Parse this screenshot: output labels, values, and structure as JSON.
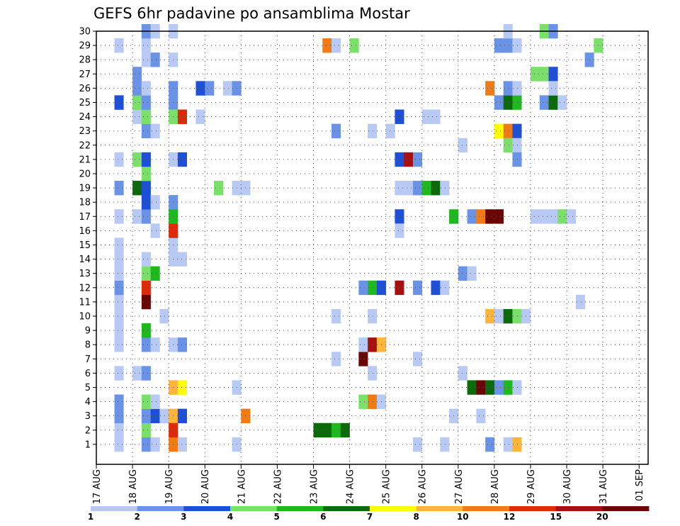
{
  "chart_data": {
    "type": "heatmap",
    "title": "GEFS 6hr padavine po ansamblima Mostar",
    "x_tick_labels": [
      "17 AUG",
      "18 AUG",
      "19 AUG",
      "20 AUG",
      "21 AUG",
      "22 AUG",
      "23 AUG",
      "24 AUG",
      "25 AUG",
      "26 AUG",
      "27 AUG",
      "28 AUG",
      "29 AUG",
      "30 AUG",
      "31 AUG",
      "01 SEP"
    ],
    "x_range": [
      0,
      61
    ],
    "y_range": [
      0,
      30
    ],
    "y_tick_labels": [
      "1",
      "2",
      "3",
      "4",
      "5",
      "6",
      "7",
      "8",
      "9",
      "10",
      "11",
      "12",
      "13",
      "14",
      "15",
      "16",
      "17",
      "18",
      "19",
      "20",
      "21",
      "22",
      "23",
      "24",
      "25",
      "26",
      "27",
      "28",
      "29",
      "30"
    ],
    "grid": true,
    "colorbar": {
      "labels": [
        "1",
        "2",
        "3",
        "4",
        "5",
        "6",
        "7",
        "8",
        "10",
        "12",
        "15",
        "20"
      ],
      "colors": [
        "#b8c9f4",
        "#6a93e8",
        "#1e4fd8",
        "#7ae06a",
        "#1fb81f",
        "#0b6b0b",
        "#ffff00",
        "#ffb43c",
        "#f07a14",
        "#de2a0a",
        "#a80f0f",
        "#6a0606"
      ]
    },
    "cells": [
      [
        2,
        1,
        "#b8c9f4"
      ],
      [
        2,
        2,
        "#b8c9f4"
      ],
      [
        2,
        3,
        "#6a93e8"
      ],
      [
        2,
        4,
        "#6a93e8"
      ],
      [
        2,
        6,
        "#b8c9f4"
      ],
      [
        2,
        8,
        "#b8c9f4"
      ],
      [
        2,
        9,
        "#b8c9f4"
      ],
      [
        2,
        10,
        "#b8c9f4"
      ],
      [
        2,
        11,
        "#b8c9f4"
      ],
      [
        2,
        12,
        "#6a93e8"
      ],
      [
        2,
        13,
        "#b8c9f4"
      ],
      [
        2,
        14,
        "#b8c9f4"
      ],
      [
        2,
        15,
        "#b8c9f4"
      ],
      [
        2,
        17,
        "#b8c9f4"
      ],
      [
        2,
        19,
        "#6a93e8"
      ],
      [
        2,
        21,
        "#b8c9f4"
      ],
      [
        2,
        25,
        "#1e4fd8"
      ],
      [
        2,
        29,
        "#b8c9f4"
      ],
      [
        4,
        6,
        "#b8c9f4"
      ],
      [
        4,
        17,
        "#b8c9f4"
      ],
      [
        4,
        24,
        "#b8c9f4"
      ],
      [
        4,
        25,
        "#7ae06a"
      ],
      [
        4,
        26,
        "#6a93e8"
      ],
      [
        4,
        27,
        "#6a93e8"
      ],
      [
        4,
        19,
        "#0b6b0b"
      ],
      [
        4,
        21,
        "#7ae06a"
      ],
      [
        5,
        1,
        "#6a93e8"
      ],
      [
        5,
        2,
        "#7ae06a"
      ],
      [
        5,
        3,
        "#6a93e8"
      ],
      [
        5,
        4,
        "#7ae06a"
      ],
      [
        5,
        6,
        "#6a93e8"
      ],
      [
        5,
        8,
        "#6a93e8"
      ],
      [
        5,
        9,
        "#1fb81f"
      ],
      [
        5,
        11,
        "#6a0606"
      ],
      [
        5,
        12,
        "#de2a0a"
      ],
      [
        5,
        13,
        "#7ae06a"
      ],
      [
        5,
        14,
        "#b8c9f4"
      ],
      [
        5,
        17,
        "#6a93e8"
      ],
      [
        5,
        18,
        "#1e4fd8"
      ],
      [
        5,
        19,
        "#1e4fd8"
      ],
      [
        5,
        20,
        "#7ae06a"
      ],
      [
        5,
        21,
        "#1e4fd8"
      ],
      [
        5,
        23,
        "#6a93e8"
      ],
      [
        5,
        24,
        "#7ae06a"
      ],
      [
        5,
        25,
        "#6a93e8"
      ],
      [
        5,
        26,
        "#b8c9f4"
      ],
      [
        5,
        28,
        "#b8c9f4"
      ],
      [
        5,
        29,
        "#b8c9f4"
      ],
      [
        5,
        30,
        "#6a93e8"
      ],
      [
        6,
        1,
        "#b8c9f4"
      ],
      [
        6,
        3,
        "#1e4fd8"
      ],
      [
        6,
        4,
        "#b8c9f4"
      ],
      [
        6,
        8,
        "#b8c9f4"
      ],
      [
        6,
        13,
        "#1fb81f"
      ],
      [
        6,
        16,
        "#b8c9f4"
      ],
      [
        6,
        18,
        "#b8c9f4"
      ],
      [
        6,
        23,
        "#b8c9f4"
      ],
      [
        6,
        28,
        "#6a93e8"
      ],
      [
        6,
        30,
        "#b8c9f4"
      ],
      [
        7,
        3,
        "#b8c9f4"
      ],
      [
        7,
        10,
        "#b8c9f4"
      ],
      [
        8,
        14,
        "#b8c9f4"
      ],
      [
        8,
        15,
        "#b8c9f4"
      ],
      [
        8,
        8,
        "#b8c9f4"
      ],
      [
        8,
        21,
        "#b8c9f4"
      ],
      [
        8,
        28,
        "#b8c9f4"
      ],
      [
        8,
        30,
        "#b8c9f4"
      ],
      [
        8,
        25,
        "#6a93e8"
      ],
      [
        8,
        26,
        "#6a93e8"
      ],
      [
        8,
        18,
        "#6a93e8"
      ],
      [
        8,
        3,
        "#ffb43c"
      ],
      [
        8,
        5,
        "#ffb43c"
      ],
      [
        8,
        1,
        "#f07a14"
      ],
      [
        8,
        2,
        "#de2a0a"
      ],
      [
        8,
        16,
        "#de2a0a"
      ],
      [
        8,
        17,
        "#1fb81f"
      ],
      [
        8,
        24,
        "#7ae06a"
      ],
      [
        9,
        14,
        "#b8c9f4"
      ],
      [
        9,
        1,
        "#b8c9f4"
      ],
      [
        9,
        21,
        "#1e4fd8"
      ],
      [
        9,
        24,
        "#de2a0a"
      ],
      [
        9,
        8,
        "#6a93e8"
      ],
      [
        9,
        3,
        "#1e4fd8"
      ],
      [
        9,
        5,
        "#ffff00"
      ],
      [
        11,
        26,
        "#1e4fd8"
      ],
      [
        11,
        24,
        "#b8c9f4"
      ],
      [
        12,
        26,
        "#6a93e8"
      ],
      [
        13,
        19,
        "#7ae06a"
      ],
      [
        14,
        26,
        "#b8c9f4"
      ],
      [
        15,
        5,
        "#b8c9f4"
      ],
      [
        15,
        1,
        "#b8c9f4"
      ],
      [
        15,
        19,
        "#b8c9f4"
      ],
      [
        15,
        26,
        "#6a93e8"
      ],
      [
        16,
        19,
        "#b8c9f4"
      ],
      [
        16,
        3,
        "#f07a14"
      ],
      [
        24,
        2,
        "#0b6b0b"
      ],
      [
        25,
        2,
        "#0b6b0b"
      ],
      [
        25,
        29,
        "#f07a14"
      ],
      [
        26,
        29,
        "#b8c9f4"
      ],
      [
        26,
        23,
        "#6a93e8"
      ],
      [
        26,
        2,
        "#1fb81f"
      ],
      [
        26,
        7,
        "#b8c9f4"
      ],
      [
        26,
        10,
        "#b8c9f4"
      ],
      [
        27,
        2,
        "#0b6b0b"
      ],
      [
        28,
        29,
        "#7ae06a"
      ],
      [
        29,
        7,
        "#6a0606"
      ],
      [
        29,
        8,
        "#b8c9f4"
      ],
      [
        29,
        12,
        "#6a93e8"
      ],
      [
        29,
        4,
        "#7ae06a"
      ],
      [
        30,
        4,
        "#f07a14"
      ],
      [
        30,
        8,
        "#a80f0f"
      ],
      [
        30,
        12,
        "#1fb81f"
      ],
      [
        30,
        6,
        "#b8c9f4"
      ],
      [
        30,
        10,
        "#b8c9f4"
      ],
      [
        30,
        23,
        "#b8c9f4"
      ],
      [
        31,
        8,
        "#ffb43c"
      ],
      [
        31,
        4,
        "#b8c9f4"
      ],
      [
        31,
        12,
        "#1e4fd8"
      ],
      [
        32,
        23,
        "#b8c9f4"
      ],
      [
        33,
        21,
        "#1e4fd8"
      ],
      [
        33,
        24,
        "#1e4fd8"
      ],
      [
        33,
        12,
        "#a80f0f"
      ],
      [
        33,
        17,
        "#1e4fd8"
      ],
      [
        33,
        16,
        "#b8c9f4"
      ],
      [
        33,
        19,
        "#b8c9f4"
      ],
      [
        34,
        21,
        "#a80f0f"
      ],
      [
        34,
        19,
        "#b8c9f4"
      ],
      [
        35,
        21,
        "#6a93e8"
      ],
      [
        35,
        19,
        "#6a93e8"
      ],
      [
        35,
        12,
        "#6a93e8"
      ],
      [
        35,
        7,
        "#b8c9f4"
      ],
      [
        35,
        1,
        "#b8c9f4"
      ],
      [
        36,
        19,
        "#1fb81f"
      ],
      [
        36,
        24,
        "#b8c9f4"
      ],
      [
        37,
        19,
        "#0b6b0b"
      ],
      [
        37,
        12,
        "#1e4fd8"
      ],
      [
        37,
        24,
        "#b8c9f4"
      ],
      [
        38,
        19,
        "#b8c9f4"
      ],
      [
        38,
        12,
        "#b8c9f4"
      ],
      [
        38,
        1,
        "#b8c9f4"
      ],
      [
        39,
        17,
        "#1fb81f"
      ],
      [
        39,
        3,
        "#b8c9f4"
      ],
      [
        40,
        13,
        "#6a93e8"
      ],
      [
        40,
        22,
        "#b8c9f4"
      ],
      [
        40,
        6,
        "#b8c9f4"
      ],
      [
        41,
        13,
        "#b8c9f4"
      ],
      [
        41,
        17,
        "#6a93e8"
      ],
      [
        41,
        5,
        "#0b6b0b"
      ],
      [
        42,
        17,
        "#f07a14"
      ],
      [
        42,
        5,
        "#6a0606"
      ],
      [
        42,
        3,
        "#b8c9f4"
      ],
      [
        43,
        17,
        "#6a0606"
      ],
      [
        43,
        5,
        "#0b6b0b"
      ],
      [
        43,
        10,
        "#ffb43c"
      ],
      [
        43,
        26,
        "#f07a14"
      ],
      [
        43,
        1,
        "#6a93e8"
      ],
      [
        44,
        17,
        "#6a0606"
      ],
      [
        44,
        5,
        "#6a93e8"
      ],
      [
        44,
        10,
        "#b8c9f4"
      ],
      [
        44,
        25,
        "#6a93e8"
      ],
      [
        44,
        29,
        "#6a93e8"
      ],
      [
        44,
        23,
        "#ffff00"
      ],
      [
        45,
        5,
        "#1fb81f"
      ],
      [
        45,
        10,
        "#0b6b0b"
      ],
      [
        45,
        23,
        "#f07a14"
      ],
      [
        45,
        22,
        "#7ae06a"
      ],
      [
        45,
        25,
        "#0b6b0b"
      ],
      [
        45,
        26,
        "#6a93e8"
      ],
      [
        45,
        29,
        "#6a93e8"
      ],
      [
        45,
        30,
        "#b8c9f4"
      ],
      [
        45,
        1,
        "#b8c9f4"
      ],
      [
        46,
        5,
        "#b8c9f4"
      ],
      [
        46,
        10,
        "#7ae06a"
      ],
      [
        46,
        23,
        "#1e4fd8"
      ],
      [
        46,
        22,
        "#b8c9f4"
      ],
      [
        46,
        21,
        "#6a93e8"
      ],
      [
        46,
        25,
        "#1fb81f"
      ],
      [
        46,
        26,
        "#b8c9f4"
      ],
      [
        46,
        29,
        "#b8c9f4"
      ],
      [
        46,
        1,
        "#ffb43c"
      ],
      [
        47,
        10,
        "#b8c9f4"
      ],
      [
        48,
        17,
        "#b8c9f4"
      ],
      [
        48,
        27,
        "#7ae06a"
      ],
      [
        49,
        17,
        "#b8c9f4"
      ],
      [
        49,
        27,
        "#7ae06a"
      ],
      [
        49,
        25,
        "#6a93e8"
      ],
      [
        49,
        30,
        "#7ae06a"
      ],
      [
        50,
        17,
        "#b8c9f4"
      ],
      [
        50,
        27,
        "#1e4fd8"
      ],
      [
        50,
        25,
        "#0b6b0b"
      ],
      [
        50,
        26,
        "#b8c9f4"
      ],
      [
        50,
        30,
        "#6a93e8"
      ],
      [
        51,
        17,
        "#7ae06a"
      ],
      [
        51,
        25,
        "#b8c9f4"
      ],
      [
        52,
        17,
        "#b8c9f4"
      ],
      [
        53,
        11,
        "#b8c9f4"
      ],
      [
        54,
        28,
        "#6a93e8"
      ],
      [
        55,
        29,
        "#7ae06a"
      ]
    ]
  }
}
